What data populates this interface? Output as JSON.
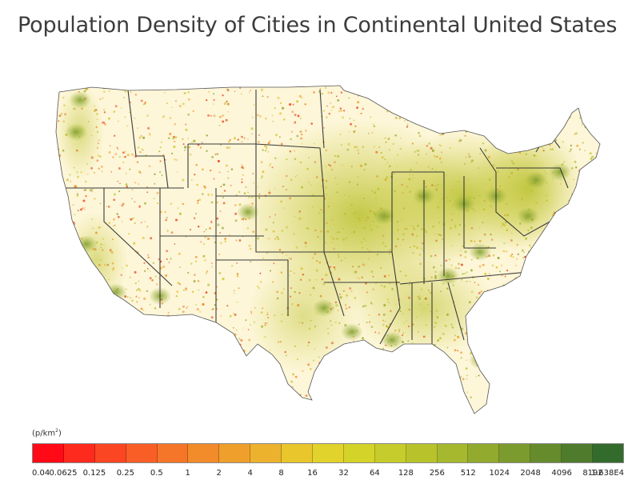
{
  "title": "Population Density of Cities in Continental United States",
  "legend": {
    "unit": "(p/km",
    "unit_sup": "2",
    "unit_close": ")",
    "ticks": [
      "0.04",
      "0.0625",
      "0.125",
      "0.25",
      "0.5",
      "1",
      "2",
      "4",
      "8",
      "16",
      "32",
      "64",
      "128",
      "256",
      "512",
      "1024",
      "2048",
      "4096",
      "8192",
      "1.638E4"
    ],
    "colors": [
      "#ff0a16",
      "#fe2a1e",
      "#fb4624",
      "#f85e26",
      "#f57628",
      "#f28b29",
      "#efa02c",
      "#ecb22e",
      "#e8c62c",
      "#e1d32b",
      "#d4d32a",
      "#c6cc2b",
      "#b8c32c",
      "#a6b82e",
      "#92aa2e",
      "#7c9b2f",
      "#668b2d",
      "#4f7b2c",
      "#336b2c"
    ]
  }
}
